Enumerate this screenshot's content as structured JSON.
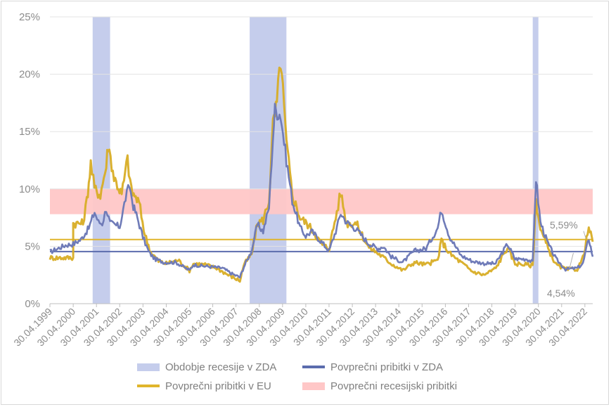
{
  "chart_data": {
    "type": "line",
    "x_start": "1999-04-30",
    "x_end": "2022-08-31",
    "ylim": [
      0,
      25
    ],
    "y_ticks": [
      "0%",
      "5%",
      "10%",
      "15%",
      "20%",
      "25%"
    ],
    "x_ticks": [
      "30.04.1999",
      "30.04.2000",
      "30.04.2001",
      "30.04.2002",
      "30.04.2003",
      "30.04.2004",
      "30.04.2005",
      "30.04.2006",
      "30.04.2007",
      "30.04.2008",
      "30.04.2009",
      "30.04.2010",
      "30.04.2011",
      "30.04.2012",
      "30.04.2013",
      "30.04.2014",
      "30.04.2015",
      "30.04.2016",
      "30.04.2017",
      "30.04.2018",
      "30.04.2019",
      "30.04.2020",
      "30.04.2021",
      "30.04.2022"
    ],
    "grid": true,
    "recession_band": {
      "name": "Povprečni recesijski pribitki",
      "from": 7.8,
      "to": 10.0,
      "color": "#ffc7c7"
    },
    "recession_periods": [
      {
        "start": "2001-03-01",
        "end": "2001-11-30"
      },
      {
        "start": "2007-12-01",
        "end": "2009-06-30"
      },
      {
        "start": "2020-02-01",
        "end": "2020-04-30"
      }
    ],
    "avg_lines": [
      {
        "series": "Povprečni pribitki v EU",
        "value": 5.59,
        "label": "5,59%",
        "color": "#e0b52b"
      },
      {
        "series": "Povprečni pribitki v ZDA",
        "value": 4.54,
        "label": "4,54%",
        "color": "#5b6cad"
      }
    ],
    "series": [
      {
        "name": "Povprečni pribitki v ZDA",
        "color": "#6f7bb8",
        "points": [
          [
            "1999-04-30",
            4.5
          ],
          [
            "1999-08-31",
            4.8
          ],
          [
            "1999-12-31",
            5.1
          ],
          [
            "2000-04-30",
            5.2
          ],
          [
            "2000-08-31",
            5.6
          ],
          [
            "2000-12-31",
            6.6
          ],
          [
            "2001-03-31",
            8.0
          ],
          [
            "2001-05-31",
            7.1
          ],
          [
            "2001-07-31",
            7.0
          ],
          [
            "2001-09-30",
            8.3
          ],
          [
            "2001-11-30",
            7.0
          ],
          [
            "2002-01-31",
            6.9
          ],
          [
            "2002-04-30",
            6.7
          ],
          [
            "2002-07-31",
            9.2
          ],
          [
            "2002-09-30",
            10.3
          ],
          [
            "2002-11-30",
            8.5
          ],
          [
            "2003-01-31",
            7.5
          ],
          [
            "2003-04-30",
            5.8
          ],
          [
            "2003-07-31",
            4.5
          ],
          [
            "2003-10-31",
            3.9
          ],
          [
            "2004-03-31",
            3.6
          ],
          [
            "2004-09-30",
            3.6
          ],
          [
            "2005-04-30",
            2.9
          ],
          [
            "2005-06-30",
            3.4
          ],
          [
            "2005-10-31",
            3.3
          ],
          [
            "2006-04-30",
            3.2
          ],
          [
            "2006-09-30",
            3.1
          ],
          [
            "2007-02-28",
            2.6
          ],
          [
            "2007-06-30",
            2.3
          ],
          [
            "2007-08-31",
            3.2
          ],
          [
            "2007-12-31",
            4.6
          ],
          [
            "2008-03-31",
            6.9
          ],
          [
            "2008-06-30",
            6.3
          ],
          [
            "2008-09-30",
            8.4
          ],
          [
            "2008-11-30",
            14.5
          ],
          [
            "2008-12-31",
            16.9
          ],
          [
            "2009-03-31",
            16.5
          ],
          [
            "2009-06-30",
            12.5
          ],
          [
            "2009-09-30",
            9.0
          ],
          [
            "2010-01-31",
            6.6
          ],
          [
            "2010-04-30",
            5.9
          ],
          [
            "2010-07-31",
            6.3
          ],
          [
            "2010-12-31",
            5.4
          ],
          [
            "2011-04-30",
            4.6
          ],
          [
            "2011-08-31",
            6.6
          ],
          [
            "2011-10-31",
            7.9
          ],
          [
            "2012-01-31",
            7.1
          ],
          [
            "2012-06-30",
            6.5
          ],
          [
            "2012-12-31",
            5.3
          ],
          [
            "2013-05-31",
            4.8
          ],
          [
            "2013-08-31",
            5.0
          ],
          [
            "2013-12-31",
            4.1
          ],
          [
            "2014-06-30",
            3.6
          ],
          [
            "2014-12-31",
            4.6
          ],
          [
            "2015-06-30",
            4.8
          ],
          [
            "2015-12-31",
            6.6
          ],
          [
            "2016-02-29",
            8.2
          ],
          [
            "2016-06-30",
            5.9
          ],
          [
            "2016-12-31",
            4.2
          ],
          [
            "2017-06-30",
            3.7
          ],
          [
            "2017-12-31",
            3.5
          ],
          [
            "2018-06-30",
            3.5
          ],
          [
            "2018-12-31",
            5.2
          ],
          [
            "2019-04-30",
            3.9
          ],
          [
            "2019-10-31",
            3.9
          ],
          [
            "2020-01-31",
            3.6
          ],
          [
            "2020-03-23",
            10.9
          ],
          [
            "2020-05-31",
            7.1
          ],
          [
            "2020-09-30",
            5.2
          ],
          [
            "2021-01-31",
            3.9
          ],
          [
            "2021-06-30",
            3.0
          ],
          [
            "2021-12-31",
            3.1
          ],
          [
            "2022-03-31",
            3.5
          ],
          [
            "2022-06-30",
            5.7
          ],
          [
            "2022-08-31",
            4.1
          ]
        ]
      },
      {
        "name": "Povprečni pribitki v EU",
        "color": "#d8ad25",
        "points": [
          [
            "1999-04-30",
            4.0
          ],
          [
            "1999-08-31",
            4.0
          ],
          [
            "2000-04-30",
            4.0
          ],
          [
            "2000-04-30",
            7.0
          ],
          [
            "2000-09-30",
            7.0
          ],
          [
            "2000-11-30",
            9.0
          ],
          [
            "2001-01-31",
            12.2
          ],
          [
            "2001-03-31",
            10.0
          ],
          [
            "2001-06-30",
            9.5
          ],
          [
            "2001-09-30",
            12.0
          ],
          [
            "2001-10-31",
            13.9
          ],
          [
            "2002-01-31",
            11.0
          ],
          [
            "2002-05-31",
            9.5
          ],
          [
            "2002-08-31",
            12.6
          ],
          [
            "2002-10-31",
            9.8
          ],
          [
            "2003-02-28",
            8.8
          ],
          [
            "2003-05-31",
            6.0
          ],
          [
            "2003-08-31",
            4.5
          ],
          [
            "2003-12-31",
            3.7
          ],
          [
            "2004-04-30",
            3.5
          ],
          [
            "2004-10-31",
            3.8
          ],
          [
            "2005-04-30",
            2.9
          ],
          [
            "2005-06-30",
            3.5
          ],
          [
            "2005-12-31",
            3.4
          ],
          [
            "2006-06-30",
            3.1
          ],
          [
            "2006-12-31",
            2.5
          ],
          [
            "2007-06-30",
            2.0
          ],
          [
            "2007-08-31",
            3.4
          ],
          [
            "2007-12-31",
            4.3
          ],
          [
            "2008-03-31",
            7.0
          ],
          [
            "2008-06-30",
            7.3
          ],
          [
            "2008-09-30",
            9.0
          ],
          [
            "2008-11-30",
            15.5
          ],
          [
            "2009-01-31",
            17.4
          ],
          [
            "2009-03-31",
            21.4
          ],
          [
            "2009-06-30",
            14.0
          ],
          [
            "2009-09-30",
            9.5
          ],
          [
            "2010-01-31",
            7.5
          ],
          [
            "2010-05-31",
            6.9
          ],
          [
            "2010-08-31",
            6.3
          ],
          [
            "2010-12-31",
            5.2
          ],
          [
            "2011-04-30",
            4.8
          ],
          [
            "2011-08-31",
            8.0
          ],
          [
            "2011-10-31",
            9.7
          ],
          [
            "2012-01-31",
            7.0
          ],
          [
            "2012-06-30",
            7.0
          ],
          [
            "2012-12-31",
            5.0
          ],
          [
            "2013-06-30",
            4.3
          ],
          [
            "2013-12-31",
            3.5
          ],
          [
            "2014-06-30",
            2.9
          ],
          [
            "2014-12-31",
            3.6
          ],
          [
            "2015-06-30",
            3.4
          ],
          [
            "2015-12-31",
            3.8
          ],
          [
            "2016-02-29",
            5.5
          ],
          [
            "2016-06-30",
            4.4
          ],
          [
            "2016-12-31",
            3.6
          ],
          [
            "2017-06-30",
            2.8
          ],
          [
            "2017-12-31",
            2.5
          ],
          [
            "2018-06-30",
            3.1
          ],
          [
            "2018-12-31",
            4.9
          ],
          [
            "2019-04-30",
            3.5
          ],
          [
            "2019-10-31",
            3.4
          ],
          [
            "2020-01-31",
            3.3
          ],
          [
            "2020-03-23",
            9.0
          ],
          [
            "2020-05-31",
            6.5
          ],
          [
            "2020-09-30",
            4.8
          ],
          [
            "2021-01-31",
            3.4
          ],
          [
            "2021-06-30",
            3.0
          ],
          [
            "2021-12-31",
            3.0
          ],
          [
            "2022-03-31",
            4.0
          ],
          [
            "2022-06-30",
            6.6
          ],
          [
            "2022-08-31",
            5.4
          ]
        ]
      }
    ],
    "legend": [
      {
        "label": "Obdobje recesije v ZDA",
        "kind": "band",
        "color": "#c5cdec"
      },
      {
        "label": "Povprečni pribitki v ZDA",
        "kind": "line",
        "color": "#5b6cad"
      },
      {
        "label": "Povprečni pribitki v EU",
        "kind": "line",
        "color": "#e0b52b"
      },
      {
        "label": "Povprečni recesijski pribitki",
        "kind": "band",
        "color": "#ffc7c7"
      }
    ]
  }
}
